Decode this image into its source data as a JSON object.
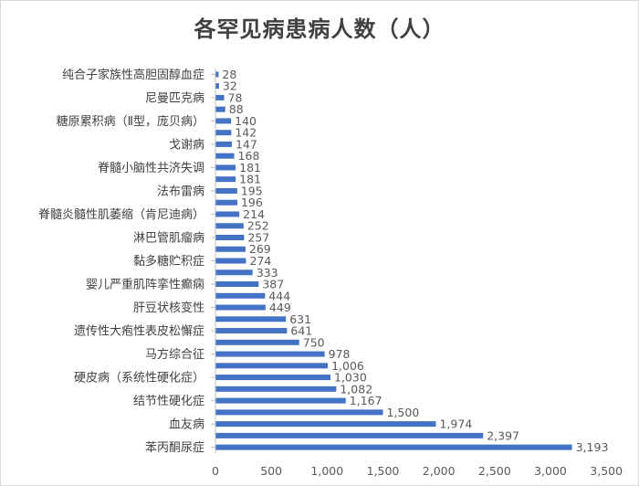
{
  "chart_data": {
    "type": "bar",
    "orientation": "horizontal",
    "title": "各罕见病患病人数（人）",
    "xlabel": "",
    "ylabel": "",
    "xlim": [
      0,
      3500
    ],
    "x_ticks": [
      0,
      500,
      1000,
      1500,
      2000,
      2500,
      3000,
      3500
    ],
    "x_tick_labels": [
      "0",
      "500",
      "1,000",
      "1,500",
      "2,000",
      "2,500",
      "3,000",
      "3,500"
    ],
    "grid": false,
    "legend": "none",
    "bar_color": "#4472c4",
    "values": [
      3193,
      2397,
      1974,
      1500,
      1167,
      1082,
      1030,
      1006,
      978,
      750,
      641,
      631,
      449,
      444,
      387,
      333,
      274,
      269,
      257,
      252,
      214,
      196,
      195,
      181,
      181,
      168,
      147,
      142,
      140,
      88,
      78,
      32,
      28
    ],
    "value_labels": [
      "3,193",
      "2,397",
      "1,974",
      "1,500",
      "1,167",
      "1,082",
      "1,030",
      "1,006",
      "978",
      "750",
      "641",
      "631",
      "449",
      "444",
      "387",
      "333",
      "274",
      "269",
      "257",
      "252",
      "214",
      "196",
      "195",
      "181",
      "181",
      "168",
      "147",
      "142",
      "140",
      "88",
      "78",
      "32",
      "28"
    ],
    "categories_visible": [
      {
        "label": "苯丙酮尿症",
        "index": 0
      },
      {
        "label": "血友病",
        "index": 2
      },
      {
        "label": "结节性硬化症",
        "index": 4
      },
      {
        "label": "硬皮病（系统性硬化症）",
        "index": 6
      },
      {
        "label": "马方综合征",
        "index": 8
      },
      {
        "label": "遗传性大疱性表皮松懈症",
        "index": 10
      },
      {
        "label": "肝豆状核变性",
        "index": 12
      },
      {
        "label": "婴儿严重肌阵挛性癫痫",
        "index": 14
      },
      {
        "label": "黏多糖贮积症",
        "index": 16
      },
      {
        "label": "淋巴管肌瘤病",
        "index": 18
      },
      {
        "label": "脊髓炎髓性肌萎缩（肯尼迪病）",
        "index": 20
      },
      {
        "label": "法布雷病",
        "index": 22
      },
      {
        "label": "脊髓小脑性共济失调",
        "index": 24
      },
      {
        "label": "戈谢病",
        "index": 26
      },
      {
        "label": "糖原累积病（Ⅱ型，庞贝病）",
        "index": 28
      },
      {
        "label": "尼曼匹克病",
        "index": 30
      },
      {
        "label": "纯合子家族性高胆固醇血症",
        "index": 32
      }
    ]
  }
}
